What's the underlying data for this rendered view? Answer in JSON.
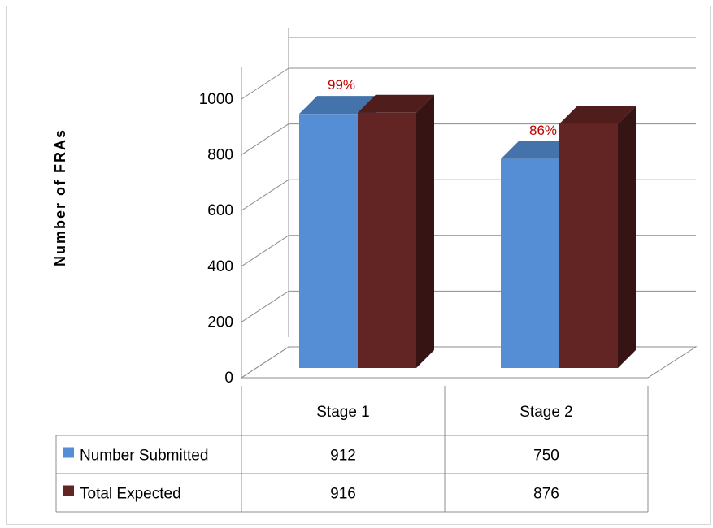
{
  "chart_data": {
    "type": "bar",
    "categories": [
      "Stage 1",
      "Stage 2"
    ],
    "series": [
      {
        "name": "Number Submitted",
        "values": [
          912,
          750
        ],
        "color": "#558ed5"
      },
      {
        "name": "Total Expected",
        "values": [
          916,
          876
        ],
        "color": "#632523"
      }
    ],
    "annotations": [
      "99%",
      "86%"
    ],
    "ylabel": "Number of FRAs",
    "xlabel": "",
    "ylim": [
      0,
      1000
    ],
    "yticks": [
      "0",
      "200",
      "400",
      "600",
      "800",
      "1000"
    ],
    "grid": true,
    "legend": "data table",
    "data_table": true,
    "annotation_color": "#c00000"
  }
}
